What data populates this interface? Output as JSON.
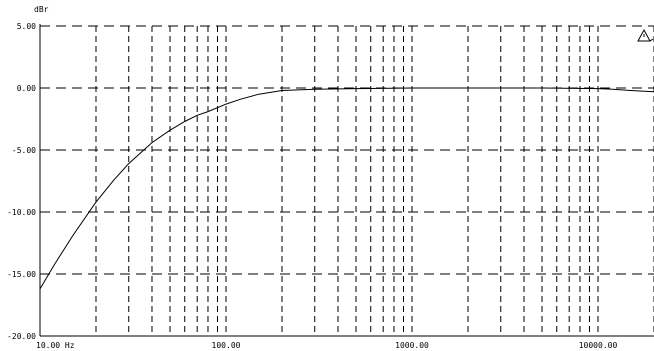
{
  "chart_data": {
    "type": "line",
    "title": "",
    "ylabel": "dBr",
    "xlabel": "",
    "x_scale": "log",
    "xlim": [
      10,
      20000
    ],
    "ylim": [
      -20,
      5
    ],
    "grid": true,
    "y_ticks": [
      {
        "value": 5,
        "label": "5.00"
      },
      {
        "value": 0,
        "label": "0.00"
      },
      {
        "value": -5,
        "label": "-5.00"
      },
      {
        "value": -10,
        "label": "-10.00"
      },
      {
        "value": -15,
        "label": "-15.00"
      },
      {
        "value": -20,
        "label": "-20.00"
      }
    ],
    "x_ticks": [
      {
        "value": 10,
        "label": "10.00 Hz"
      },
      {
        "value": 100,
        "label": "100.00"
      },
      {
        "value": 1000,
        "label": "1000.00"
      },
      {
        "value": 10000,
        "label": "10000.00"
      }
    ],
    "series": [
      {
        "x": [
          10,
          12,
          15,
          20,
          25,
          30,
          40,
          50,
          60,
          70,
          80,
          100,
          120,
          150,
          200,
          300,
          500,
          1000,
          2000,
          5000,
          10000,
          12000,
          15000,
          20000
        ],
        "y": [
          -16.2,
          -14.2,
          -11.9,
          -9.2,
          -7.4,
          -6.1,
          -4.4,
          -3.4,
          -2.7,
          -2.2,
          -1.9,
          -1.3,
          -0.9,
          -0.5,
          -0.2,
          -0.1,
          -0.05,
          0.0,
          0.0,
          0.0,
          -0.05,
          -0.1,
          -0.2,
          -0.3
        ]
      }
    ]
  }
}
